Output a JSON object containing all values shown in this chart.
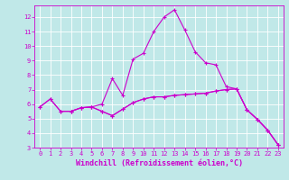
{
  "xlabel": "Windchill (Refroidissement éolien,°C)",
  "background_color": "#c0e8e8",
  "grid_color": "#ffffff",
  "line_color": "#cc00cc",
  "xlim": [
    -0.5,
    23.5
  ],
  "ylim": [
    3,
    12.8
  ],
  "xticks": [
    0,
    1,
    2,
    3,
    4,
    5,
    6,
    7,
    8,
    9,
    10,
    11,
    12,
    13,
    14,
    15,
    16,
    17,
    18,
    19,
    20,
    21,
    22,
    23
  ],
  "yticks": [
    3,
    4,
    5,
    6,
    7,
    8,
    9,
    10,
    11,
    12
  ],
  "line1_x": [
    0,
    1,
    2,
    3,
    4,
    5,
    6,
    7,
    8,
    9,
    10,
    11,
    12,
    13,
    14,
    15,
    16,
    17,
    18,
    19,
    20,
    21,
    22,
    23
  ],
  "line1_y": [
    5.8,
    6.35,
    5.5,
    5.5,
    5.75,
    5.8,
    6.0,
    7.75,
    6.6,
    9.1,
    9.5,
    11.0,
    12.0,
    12.5,
    11.1,
    9.6,
    8.85,
    8.7,
    7.2,
    7.05,
    5.6,
    4.95,
    4.2,
    3.2
  ],
  "line2_x": [
    0,
    1,
    2,
    3,
    4,
    5,
    6,
    7,
    8,
    9,
    10,
    11,
    12,
    13,
    14,
    15,
    16,
    17,
    18,
    19,
    20,
    21,
    22,
    23
  ],
  "line2_y": [
    5.8,
    6.35,
    5.5,
    5.5,
    5.75,
    5.8,
    5.5,
    5.2,
    5.65,
    6.1,
    6.35,
    6.5,
    6.5,
    6.6,
    6.65,
    6.7,
    6.75,
    6.9,
    7.0,
    7.05,
    5.6,
    4.95,
    4.2,
    3.2
  ],
  "line3_x": [
    3,
    4,
    5,
    6,
    7,
    8,
    9,
    10,
    11,
    12,
    13,
    14,
    15,
    16,
    17,
    18,
    19,
    20,
    21,
    22,
    23
  ],
  "line3_y": [
    5.5,
    5.75,
    5.8,
    5.5,
    5.2,
    5.65,
    6.1,
    6.35,
    6.5,
    6.5,
    6.6,
    6.65,
    6.7,
    6.75,
    6.9,
    7.0,
    7.05,
    5.6,
    4.95,
    4.2,
    3.2
  ],
  "marker": "+",
  "markersize": 3,
  "linewidth": 0.8,
  "tick_fontsize": 5,
  "xlabel_fontsize": 6,
  "figwidth": 3.2,
  "figheight": 2.0,
  "dpi": 100
}
